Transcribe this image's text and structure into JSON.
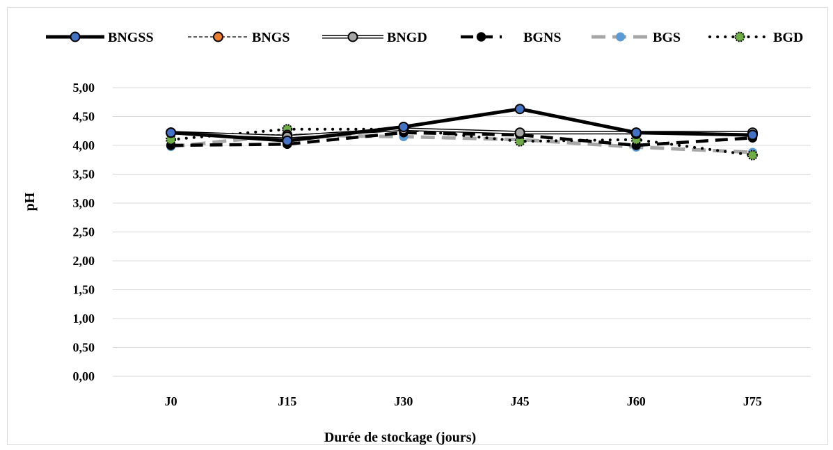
{
  "chart_data": {
    "type": "line",
    "categories": [
      "J0",
      "J15",
      "J30",
      "J45",
      "J60",
      "J75"
    ],
    "xlabel": "Durée de stockage (jours)",
    "ylabel": "pH",
    "ylim": [
      0,
      5
    ],
    "ytick_values": [
      0,
      0.5,
      1,
      1.5,
      2,
      2.5,
      3,
      3.5,
      4,
      4.5,
      5
    ],
    "ytick_labels": [
      "0,00",
      "0,50",
      "1,00",
      "1,50",
      "2,00",
      "2,50",
      "3,00",
      "3,50",
      "4,00",
      "4,50",
      "5,00"
    ],
    "grid": true,
    "legend_position": "top",
    "series": [
      {
        "name": "BNGSS",
        "values": [
          4.22,
          4.08,
          4.32,
          4.63,
          4.22,
          4.18
        ],
        "line_color": "#000000",
        "marker_color": "#4472c4",
        "style": "thick-solid"
      },
      {
        "name": "BNGS",
        "values": [
          4.22,
          4.18,
          4.28,
          4.2,
          4.2,
          4.2
        ],
        "line_color": "#000000",
        "marker_color": "#ed7d31",
        "style": "thin-dashed"
      },
      {
        "name": "BNGD",
        "values": [
          4.22,
          4.15,
          4.28,
          4.22,
          4.22,
          4.22
        ],
        "line_color": "#000000",
        "marker_color": "#a5a5a5",
        "style": "double"
      },
      {
        "name": "BGNS",
        "values": [
          4.0,
          4.02,
          4.22,
          4.18,
          4.0,
          4.13
        ],
        "line_color": "#000000",
        "marker_color": "#000000",
        "style": "thick-dashed"
      },
      {
        "name": "BGS",
        "values": [
          3.98,
          4.18,
          4.15,
          4.1,
          3.97,
          3.88
        ],
        "line_color": "#a6a6a6",
        "marker_color": "#5b9bd5",
        "style": "gray-dashed"
      },
      {
        "name": "BGD",
        "values": [
          4.1,
          4.28,
          4.28,
          4.07,
          4.1,
          3.83
        ],
        "line_color": "#000000",
        "marker_color": "#70ad47",
        "style": "dotted"
      }
    ]
  }
}
